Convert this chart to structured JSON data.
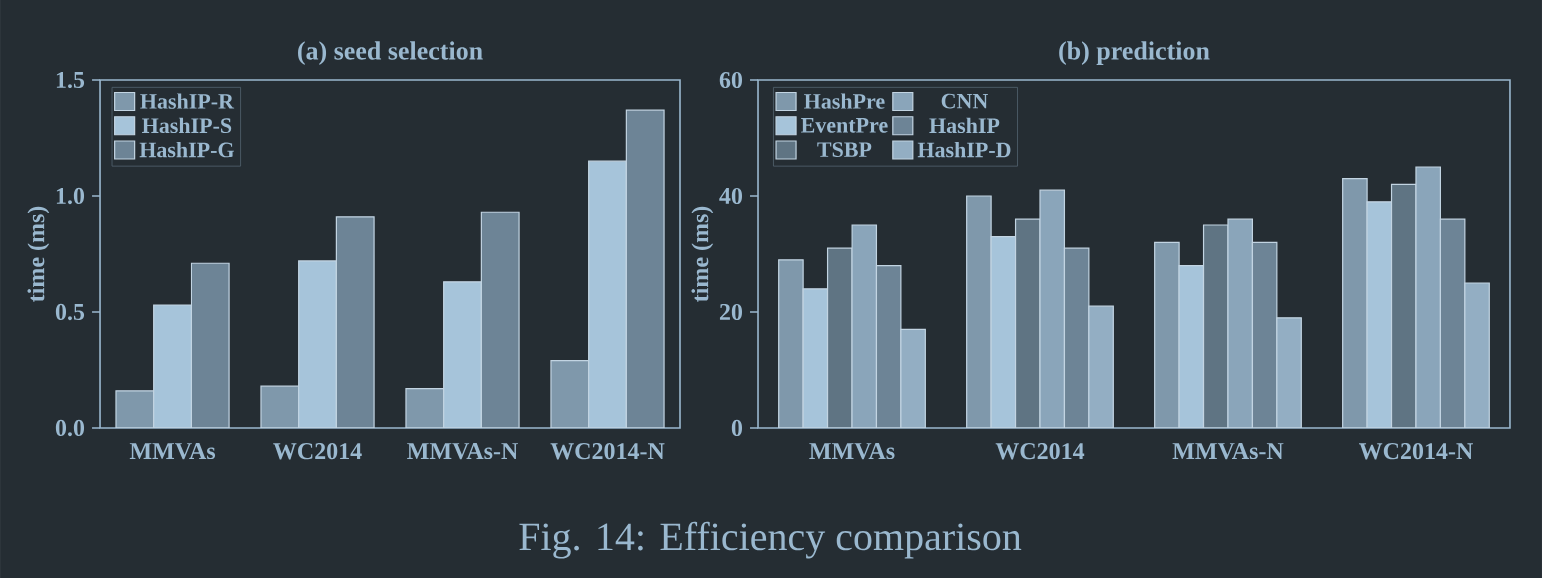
{
  "chart_data": [
    {
      "type": "bar",
      "title": "(a) seed selection",
      "ylabel": "time (ms)",
      "categories": [
        "MMVAs",
        "WC2014",
        "MMVAs-N",
        "WC2014-N"
      ],
      "series": [
        {
          "name": "HashIP-R",
          "color": "#7f98ab",
          "values": [
            0.16,
            0.18,
            0.17,
            0.29
          ]
        },
        {
          "name": "HashIP-S",
          "color": "#a6c4da",
          "values": [
            0.53,
            0.72,
            0.63,
            1.15
          ]
        },
        {
          "name": "HashIP-G",
          "color": "#6d8496",
          "values": [
            0.71,
            0.91,
            0.93,
            1.37
          ]
        }
      ],
      "ylim": [
        0,
        1.5
      ],
      "yticks": [
        {
          "value": 0,
          "label": "0.0"
        },
        {
          "value": 0.5,
          "label": "0.5"
        },
        {
          "value": 1.0,
          "label": "1.0"
        },
        {
          "value": 1.5,
          "label": "1.5"
        }
      ],
      "legend": "top left",
      "annotations": [
        "Fig. 14: Efficiency comparison"
      ]
    },
    {
      "type": "bar",
      "title": "(b) prediction",
      "ylabel": "time (ms)",
      "categories": [
        "MMVAs",
        "WC2014",
        "MMVAs-N",
        "WC2014-N"
      ],
      "series": [
        {
          "name": "HashPre",
          "color": "#7f98ab",
          "values": [
            29,
            40,
            32,
            43
          ]
        },
        {
          "name": "EventPre",
          "color": "#a6c4da",
          "values": [
            24,
            33,
            28,
            39
          ]
        },
        {
          "name": "TSBP",
          "color": "#5f7483",
          "values": [
            31,
            36,
            35,
            42
          ]
        },
        {
          "name": "CNN",
          "color": "#8aa5ba",
          "values": [
            35,
            41,
            36,
            45
          ]
        },
        {
          "name": "HashIP",
          "color": "#6d8496",
          "values": [
            28,
            31,
            32,
            36
          ]
        },
        {
          "name": "HashIP-D",
          "color": "#93aec3",
          "values": [
            17,
            21,
            19,
            25
          ]
        }
      ],
      "ylim": [
        0,
        60
      ],
      "yticks": [
        0,
        20,
        40,
        60
      ],
      "legend": "top left"
    }
  ]
}
